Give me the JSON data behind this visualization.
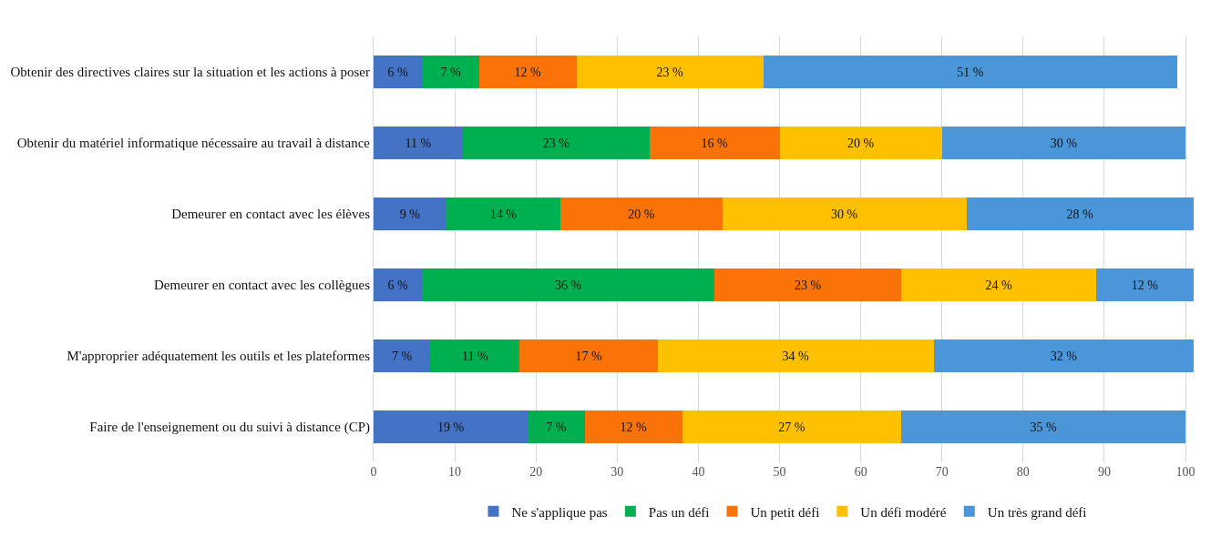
{
  "chart_data": {
    "type": "bar",
    "orientation": "horizontal",
    "stacked": true,
    "categories": [
      "Obtenir des directives claires sur la situation et les actions à poser",
      "Obtenir du matériel informatique nécessaire au travail à distance",
      "Demeurer en contact avec les élèves",
      "Demeurer en contact avec les collègues",
      "M'approprier adéquatement les outils et les plateformes",
      "Faire de l'enseignement ou du suivi à distance (CP)"
    ],
    "series": [
      {
        "name": "Ne s'applique pas",
        "color": "#4472c4",
        "values": [
          6,
          11,
          9,
          6,
          7,
          19
        ],
        "value_labels": [
          "6 %",
          "11 %",
          "9 %",
          "6 %",
          "7 %",
          "19 %"
        ]
      },
      {
        "name": "Pas un défi",
        "color": "#00b050",
        "values": [
          7,
          23,
          14,
          36,
          11,
          7
        ],
        "value_labels": [
          "7 %",
          "23 %",
          "14 %",
          "36 %",
          "11 %",
          "7 %"
        ]
      },
      {
        "name": "Un petit défi",
        "color": "#f97306",
        "values": [
          12,
          16,
          20,
          23,
          17,
          12
        ],
        "value_labels": [
          "12 %",
          "16 %",
          "20 %",
          "23 %",
          "17 %",
          "12 %"
        ]
      },
      {
        "name": "Un défi modéré",
        "color": "#ffc000",
        "values": [
          23,
          20,
          30,
          24,
          34,
          27
        ],
        "value_labels": [
          "23 %",
          "20 %",
          "30 %",
          "24 %",
          "34 %",
          "27 %"
        ]
      },
      {
        "name": "Un très grand défi",
        "color": "#4a96d8",
        "values": [
          51,
          30,
          28,
          12,
          32,
          35
        ],
        "value_labels": [
          "51 %",
          "30 %",
          "28 %",
          "12 %",
          "32 %",
          "35 %"
        ]
      }
    ],
    "xlim": [
      0,
      101
    ],
    "xticks": [
      0,
      10,
      20,
      30,
      40,
      50,
      60,
      70,
      80,
      90,
      100
    ],
    "grid": "x",
    "legend": "bottom"
  }
}
